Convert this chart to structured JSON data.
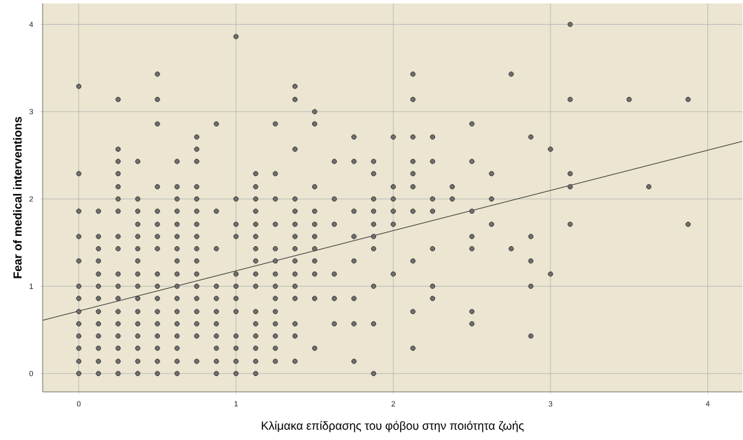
{
  "chart_data": {
    "type": "scatter",
    "xlabel": "Κλίμακα επίδρασης του φόβου στην ποιότητα ζωής",
    "ylabel": "Fear of medical interventions",
    "xlim": [
      -0.23,
      4.22
    ],
    "ylim": [
      -0.21,
      4.24
    ],
    "xticks": [
      0,
      1,
      2,
      3,
      4
    ],
    "yticks": [
      0,
      1,
      2,
      3,
      4
    ],
    "grid": true,
    "marker": "circle",
    "series": [
      {
        "color": "#6f6f6f",
        "x": [
          0,
          0,
          0,
          0,
          0,
          0,
          0,
          0,
          0,
          0,
          0,
          0,
          0,
          0.125,
          0.125,
          0.125,
          0.125,
          0.125,
          0.125,
          0.125,
          0.125,
          0.125,
          0.125,
          0.125,
          0.125,
          0.125,
          0.25,
          0.25,
          0.25,
          0.25,
          0.25,
          0.25,
          0.25,
          0.25,
          0.25,
          0.25,
          0.25,
          0.25,
          0.25,
          0.25,
          0.25,
          0.25,
          0.25,
          0.25,
          0.375,
          0.375,
          0.375,
          0.375,
          0.375,
          0.375,
          0.375,
          0.375,
          0.375,
          0.375,
          0.375,
          0.375,
          0.375,
          0.375,
          0.375,
          0.375,
          0.5,
          0.5,
          0.5,
          0.5,
          0.5,
          0.5,
          0.5,
          0.5,
          0.5,
          0.5,
          0.5,
          0.5,
          0.5,
          0.5,
          0.5,
          0.5,
          0.5,
          0.625,
          0.625,
          0.625,
          0.625,
          0.625,
          0.625,
          0.625,
          0.625,
          0.625,
          0.625,
          0.625,
          0.625,
          0.625,
          0.625,
          0.625,
          0.625,
          0.625,
          0.75,
          0.75,
          0.75,
          0.75,
          0.75,
          0.75,
          0.75,
          0.75,
          0.75,
          0.75,
          0.75,
          0.75,
          0.75,
          0.75,
          0.75,
          0.75,
          0.75,
          0.875,
          0.875,
          0.875,
          0.875,
          0.875,
          0.875,
          0.875,
          0.875,
          0.875,
          0.875,
          0.875,
          1,
          1,
          1,
          1,
          1,
          1,
          1,
          1,
          1,
          1,
          1,
          1,
          1.125,
          1.125,
          1.125,
          1.125,
          1.125,
          1.125,
          1.125,
          1.125,
          1.125,
          1.125,
          1.125,
          1.125,
          1.125,
          1.125,
          1.125,
          1.125,
          1.25,
          1.25,
          1.25,
          1.25,
          1.25,
          1.25,
          1.25,
          1.25,
          1.25,
          1.25,
          1.25,
          1.25,
          1.25,
          1.25,
          1.375,
          1.375,
          1.375,
          1.375,
          1.375,
          1.375,
          1.375,
          1.375,
          1.375,
          1.375,
          1.375,
          1.375,
          1.375,
          1.375,
          1.375,
          1.5,
          1.5,
          1.5,
          1.5,
          1.5,
          1.5,
          1.5,
          1.5,
          1.5,
          1.5,
          1.5,
          1.625,
          1.625,
          1.625,
          1.625,
          1.625,
          1.625,
          1.75,
          1.75,
          1.75,
          1.75,
          1.75,
          1.75,
          1.75,
          1.75,
          1.875,
          1.875,
          1.875,
          1.875,
          1.875,
          1.875,
          1.875,
          1.875,
          1.875,
          1.875,
          2,
          2,
          2,
          2,
          2,
          2,
          2.125,
          2.125,
          2.125,
          2.125,
          2.125,
          2.125,
          2.125,
          2.125,
          2.125,
          2.125,
          2.25,
          2.25,
          2.25,
          2.25,
          2.25,
          2.25,
          2.25,
          2.375,
          2.375,
          2.5,
          2.5,
          2.5,
          2.5,
          2.5,
          2.5,
          2.5,
          2.625,
          2.625,
          2.625,
          2.75,
          2.75,
          2.875,
          2.875,
          2.875,
          2.875,
          2.875,
          3,
          3,
          3.125,
          3.125,
          3.125,
          3.125,
          3.125,
          3.5,
          3.625,
          3.875,
          3.875
        ],
        "values": [
          3.29,
          2.29,
          1.86,
          1.57,
          1.29,
          1,
          0.86,
          0.71,
          0.57,
          0.43,
          0.29,
          0.14,
          0,
          1.86,
          1.57,
          1.43,
          1.29,
          1.14,
          1,
          0.86,
          0.71,
          0.57,
          0.43,
          0.29,
          0.14,
          0,
          3.14,
          2.57,
          2.43,
          2.29,
          2.14,
          2,
          1.86,
          1.57,
          1.43,
          1.14,
          1,
          0.86,
          0.71,
          0.57,
          0.43,
          0.29,
          0.14,
          0,
          2.43,
          2,
          1.86,
          1.71,
          1.57,
          1.43,
          1.29,
          1.14,
          1,
          0.86,
          0.71,
          0.57,
          0.43,
          0.29,
          0.14,
          0,
          3.43,
          3.14,
          2.86,
          2.14,
          1.86,
          1.71,
          1.57,
          1.43,
          1.14,
          1,
          0.86,
          0.71,
          0.57,
          0.43,
          0.29,
          0.14,
          0,
          2.43,
          2.14,
          2,
          1.86,
          1.71,
          1.57,
          1.43,
          1.29,
          1.14,
          1,
          0.86,
          0.71,
          0.57,
          0.43,
          0.29,
          0.14,
          0,
          2.71,
          2.57,
          2.43,
          2.14,
          2,
          1.86,
          1.71,
          1.57,
          1.43,
          1.29,
          1.14,
          1,
          0.86,
          0.71,
          0.57,
          0.43,
          0.14,
          2.86,
          1.86,
          1.43,
          1,
          0.86,
          0.71,
          0.57,
          0.43,
          0.29,
          0.14,
          0,
          3.86,
          2,
          1.71,
          1.57,
          1.14,
          1,
          0.86,
          0.71,
          0.43,
          0.29,
          0.14,
          0,
          2.29,
          2.14,
          2,
          1.86,
          1.71,
          1.57,
          1.43,
          1.29,
          1.14,
          1,
          0.71,
          0.57,
          0.43,
          0.29,
          0.14,
          0,
          2.86,
          2.29,
          2,
          1.71,
          1.43,
          1.29,
          1.14,
          1,
          0.86,
          0.71,
          0.57,
          0.43,
          0.29,
          0.14,
          3.29,
          3.14,
          2.57,
          2,
          1.86,
          1.71,
          1.57,
          1.43,
          1.29,
          1.14,
          1,
          0.86,
          0.57,
          0.43,
          0.14,
          3,
          2.86,
          2.14,
          1.86,
          1.71,
          1.57,
          1.43,
          1.29,
          1.14,
          0.86,
          0.29,
          2.43,
          2,
          1.71,
          1.14,
          0.86,
          0.57,
          2.71,
          2.43,
          1.86,
          1.57,
          1.29,
          0.86,
          0.57,
          0.14,
          2.43,
          2.29,
          2,
          1.86,
          1.71,
          1.57,
          1.43,
          1,
          0.57,
          0,
          2.71,
          2.14,
          2,
          1.86,
          1.71,
          1.14,
          3.43,
          3.14,
          2.71,
          2.43,
          2.29,
          2.14,
          1.86,
          1.29,
          0.71,
          0.29,
          2.71,
          2.43,
          2,
          1.86,
          1.43,
          1,
          0.86,
          2.14,
          2,
          2.86,
          2.43,
          1.86,
          1.57,
          1.43,
          0.71,
          0.57,
          2.29,
          2,
          1.71,
          3.43,
          1.43,
          2.71,
          1.57,
          1.29,
          1,
          0.43,
          2.57,
          1.14,
          4,
          3.14,
          2.29,
          2.14,
          1.71,
          3.14,
          2.14,
          3.14,
          1.71
        ]
      },
      {
        "type": "line",
        "color": "#1a1a1a",
        "marker": "none",
        "x": [
          -0.23,
          4.22
        ],
        "values": [
          0.61,
          2.66
        ]
      }
    ]
  }
}
